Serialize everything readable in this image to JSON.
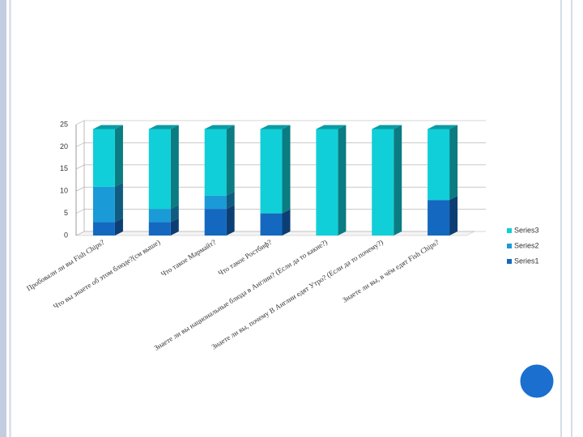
{
  "chart_data": {
    "type": "stacked-bar-3d",
    "categories": [
      "Пробовали ли вы Fish Chips?",
      "Что вы знаете об этом блюде?(см выше)",
      "Что такое Мармайт?",
      "Что такое Ростбиф?",
      "Знаете ли вы национальные блюда в Англии? (Если да то какие?)",
      "Знаете ли вы, почему В Англии едят Утро? (Если да то почему?)",
      "Знаете ли вы, в чём едят Fish Chips?"
    ],
    "series": [
      {
        "name": "Series1",
        "color": "#1468c0",
        "values": [
          3,
          3,
          6,
          5,
          0,
          0,
          8
        ]
      },
      {
        "name": "Series2",
        "color": "#1a9ad6",
        "values": [
          8,
          3,
          3,
          0,
          0,
          0,
          0
        ]
      },
      {
        "name": "Series3",
        "color": "#10cfd8",
        "values": [
          13,
          18,
          15,
          19,
          24,
          24,
          16
        ]
      }
    ],
    "ylim": [
      0,
      25
    ],
    "yticks": [
      0,
      5,
      10,
      15,
      20,
      25
    ],
    "grid": true,
    "legend": "right"
  }
}
